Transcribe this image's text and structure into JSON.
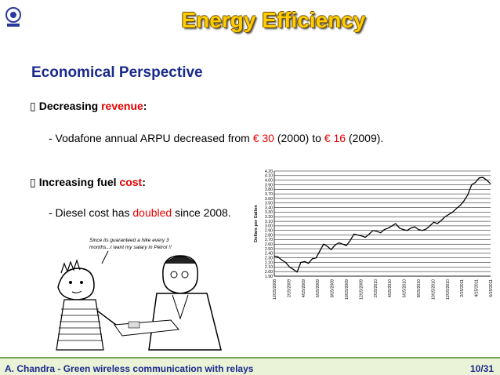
{
  "slide": {
    "title": "Energy Efficiency",
    "subtitle": "Economical Perspective",
    "bullets": [
      {
        "lead": "Decreasing ",
        "keyword": "revenue",
        "tail": ":",
        "detail": {
          "prefix": "- Vodafone annual ARPU decreased from ",
          "value1": "€ 30",
          "mid1": " (2000) to ",
          "value2": "€ 16",
          "suffix": " (2009)."
        }
      },
      {
        "lead": "Increasing fuel ",
        "keyword": "cost",
        "tail": ":",
        "detail": {
          "prefix": "- Diesel cost has ",
          "keyword": "doubled",
          "suffix": " since 2008."
        }
      }
    ],
    "cartoon_caption": "Since its guaranteed a hike every 3 months...I want my salary in Petrol !!",
    "icons": {
      "bullet": "arrow-bullet-icon",
      "logo": "institute-logo-icon"
    }
  },
  "footer": {
    "author": "A. Chandra",
    "separator": " -  ",
    "talk_title": "Green wireless communication with relays",
    "page": "10/31"
  },
  "colors": {
    "title": "#ffcc00",
    "subtitle": "#1a2a8c",
    "highlight": "#e60000",
    "footer_text": "#1a2a8c",
    "footer_bar": "#eaf2d8"
  },
  "chart_data": {
    "type": "line",
    "title": "",
    "xlabel": "",
    "ylabel": "Dollars per Gallon",
    "ylim": [
      1.9,
      4.2
    ],
    "y_ticks": [
      "4.20",
      "4.10",
      "4.00",
      "3.90",
      "3.80",
      "3.70",
      "3.60",
      "3.50",
      "3.40",
      "3.30",
      "3.20",
      "3.10",
      "3.00",
      "2.90",
      "2.80",
      "2.70",
      "2.60",
      "2.50",
      "2.40",
      "2.30",
      "2.20",
      "2.10",
      "2.00",
      "1.90"
    ],
    "x_ticks": [
      "12/15/2008",
      "2/15/2009",
      "4/15/2009",
      "6/15/2009",
      "8/15/2009",
      "10/15/2009",
      "12/15/2009",
      "2/15/2010",
      "4/15/2010",
      "6/15/2010",
      "8/15/2010",
      "10/15/2010",
      "12/15/2010",
      "2/15/2011",
      "4/15/2011",
      "6/15/2011"
    ],
    "series": [
      {
        "values": [
          2.34,
          2.32,
          2.25,
          2.2,
          2.1,
          2.05,
          1.99,
          2.2,
          2.22,
          2.18,
          2.28,
          2.3,
          2.45,
          2.6,
          2.55,
          2.48,
          2.58,
          2.63,
          2.6,
          2.57,
          2.68,
          2.82,
          2.8,
          2.78,
          2.75,
          2.82,
          2.9,
          2.88,
          2.85,
          2.92,
          2.95,
          3.0,
          3.05,
          2.95,
          2.92,
          2.9,
          2.95,
          2.98,
          2.92,
          2.9,
          2.93,
          3.0,
          3.08,
          3.05,
          3.12,
          3.2,
          3.25,
          3.3,
          3.38,
          3.45,
          3.55,
          3.68,
          3.9,
          3.95,
          4.05,
          4.06,
          4.0,
          3.92
        ]
      }
    ]
  }
}
